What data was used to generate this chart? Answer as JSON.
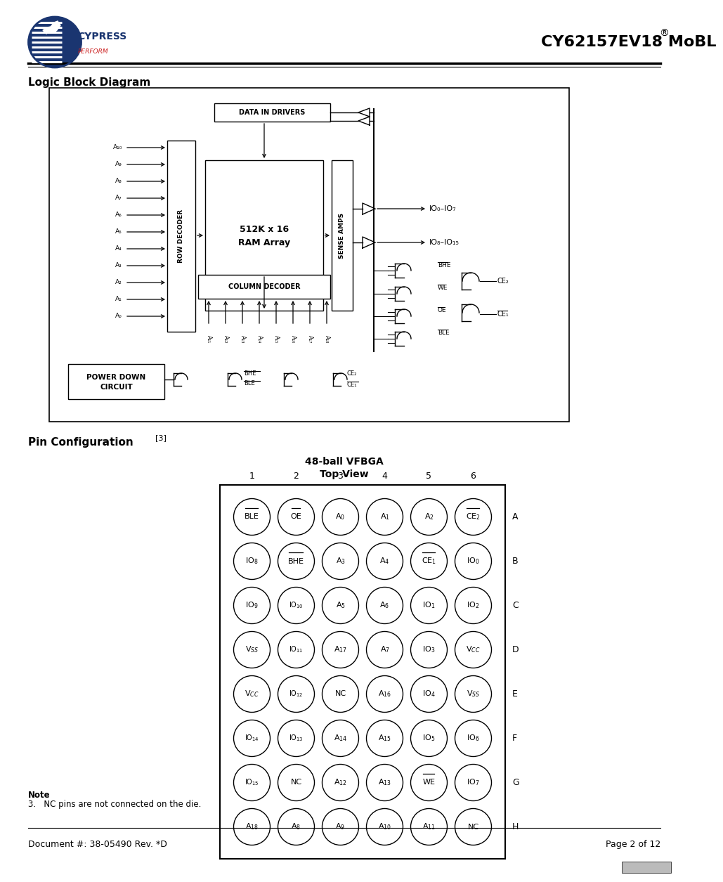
{
  "title": "CY62157EV18 MoBL",
  "section1": "Logic Block Diagram",
  "section2": "Pin Configuration",
  "section2_ref": "[3]",
  "pin_grid_title1": "48-ball VFBGA",
  "pin_grid_title2": "Top View",
  "col_labels": [
    "1",
    "2",
    "3",
    "4",
    "5",
    "6"
  ],
  "row_labels": [
    "A",
    "B",
    "C",
    "D",
    "E",
    "F",
    "G",
    "H"
  ],
  "pin_data": [
    [
      "BLE",
      "OE",
      "A0",
      "A1",
      "A2",
      "CE2"
    ],
    [
      "IO8",
      "BHE",
      "A3",
      "A4",
      "CE1",
      "IO0"
    ],
    [
      "IO9",
      "IO10",
      "A5",
      "A6",
      "IO1",
      "IO2"
    ],
    [
      "VSS",
      "IO11",
      "A17",
      "A7",
      "IO3",
      "VCC"
    ],
    [
      "VCC",
      "IO12",
      "NC",
      "A16",
      "IO4",
      "VSS"
    ],
    [
      "IO14",
      "IO13",
      "A14",
      "A15",
      "IO5",
      "IO6"
    ],
    [
      "IO15",
      "NC",
      "A12",
      "A13",
      "WE",
      "IO7"
    ],
    [
      "A18",
      "A8",
      "A9",
      "A10",
      "A11",
      "NC"
    ]
  ],
  "overlined": [
    "BLE",
    "OE",
    "CE2",
    "BHE",
    "CE1",
    "WE"
  ],
  "note": "Note",
  "note2": "3.   NC pins are not connected on the die.",
  "doc_number": "Document #: 38-05490 Rev. *D",
  "page": "Page 2 of 12",
  "bg_color": "#ffffff"
}
